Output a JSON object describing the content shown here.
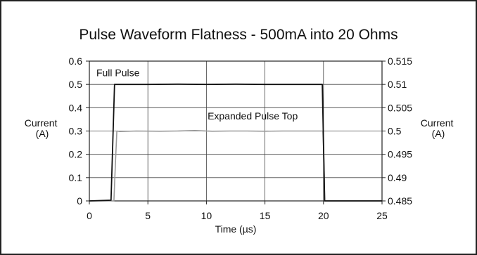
{
  "chart_data": {
    "type": "line",
    "title": "Pulse Waveform Flatness - 500mA into 20 Ohms",
    "xlabel": "Time (µs)",
    "ylabel_left": [
      "Current",
      "(A)"
    ],
    "ylabel_right": [
      "Current",
      "(A)"
    ],
    "xlim": [
      0,
      25
    ],
    "ylim_left": [
      0,
      0.6
    ],
    "ylim_right": [
      0.485,
      0.515
    ],
    "x_ticks": [
      "0",
      "5",
      "10",
      "15",
      "20",
      "25"
    ],
    "y_ticks_left": [
      "0",
      "0.1",
      "0.2",
      "0.3",
      "0.4",
      "0.5",
      "0.6"
    ],
    "y_ticks_right": [
      "0.485",
      "0.49",
      "0.495",
      "0.5",
      "0.505",
      "0.51",
      "0.515"
    ],
    "grid": true,
    "legend": "none",
    "series": [
      {
        "name": "Full Pulse",
        "axis": "left",
        "color": "#111111",
        "x": [
          0,
          1.85,
          2.0,
          2.15,
          2.5,
          5,
          7.5,
          10,
          12.5,
          15,
          17.5,
          19.9,
          20.0,
          20.1,
          25
        ],
        "y": [
          0,
          0.003,
          0.25,
          0.5,
          0.5,
          0.5,
          0.501,
          0.5,
          0.501,
          0.5,
          0.5,
          0.5,
          0.25,
          0,
          0
        ]
      },
      {
        "name": "Expanded Pulse Top",
        "axis": "right",
        "color": "#9a9a9a",
        "x": [
          0,
          2.1,
          2.22,
          2.35,
          2.6,
          4,
          6,
          7.5,
          9,
          10.5,
          12,
          13.5,
          15,
          16.5,
          18,
          19.95,
          20.05,
          20.1,
          25
        ],
        "y": [
          0.485,
          0.485,
          0.4925,
          0.5,
          0.4999,
          0.5,
          0.49995,
          0.5,
          0.5001,
          0.49995,
          0.5,
          0.5,
          0.49995,
          0.5,
          0.5,
          0.5,
          0.4925,
          0.485,
          0.485
        ]
      }
    ],
    "annotations": [
      {
        "text": "Full Pulse",
        "x": 0.6,
        "y": 0.535,
        "axis": "left"
      },
      {
        "text": "Expanded Pulse Top",
        "x": 10.1,
        "y": 0.5025,
        "axis": "right"
      }
    ]
  }
}
